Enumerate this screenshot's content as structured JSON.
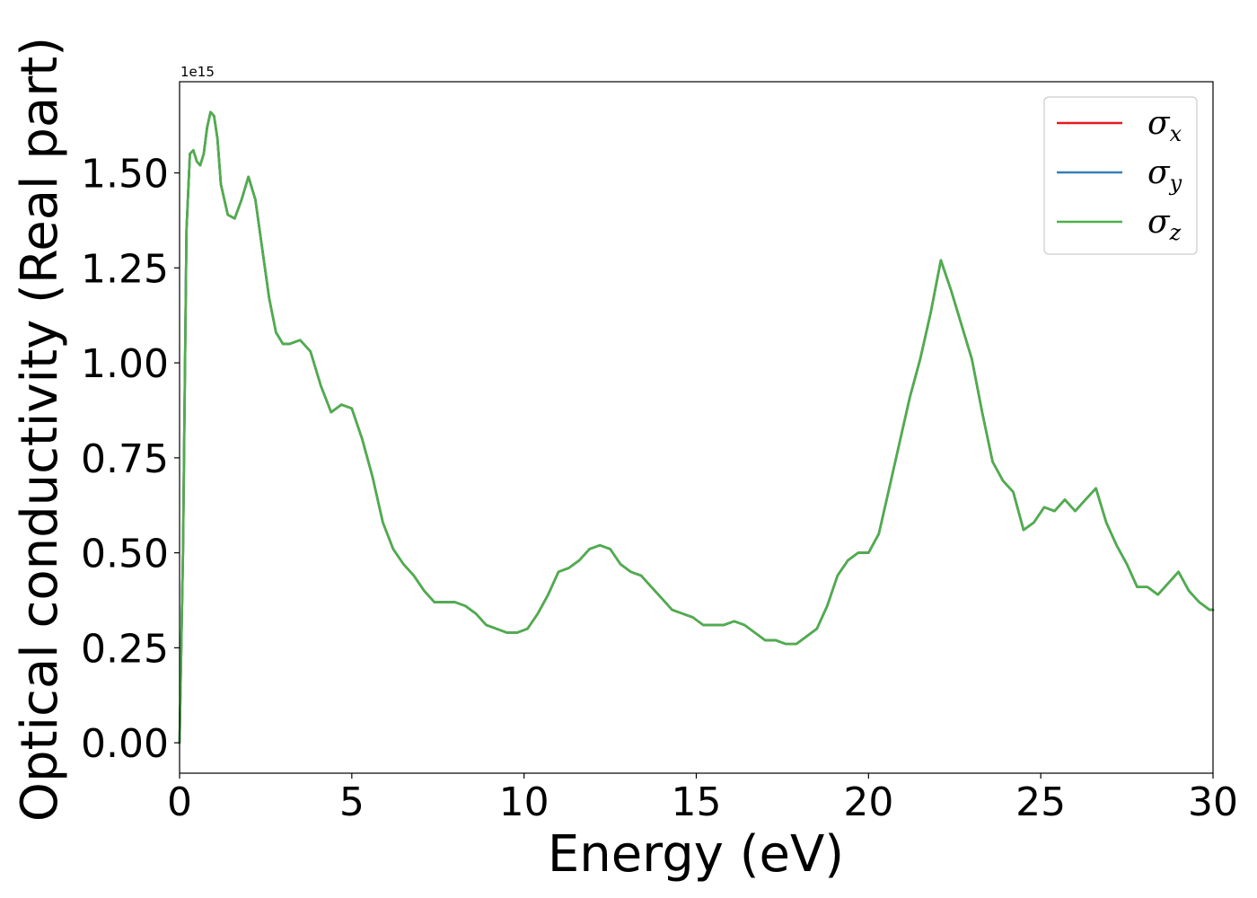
{
  "chart_data": {
    "type": "line",
    "title": "",
    "xlabel": "Energy (eV)",
    "ylabel": "Optical conductivity (Real part)",
    "y_offset_text": "1e15",
    "xlim": [
      0,
      30
    ],
    "ylim": [
      -0.08,
      1.74
    ],
    "y_scale_factor": 1000000000000000.0,
    "xticks": [
      0,
      5,
      10,
      15,
      20,
      25,
      30
    ],
    "xtick_labels": [
      "0",
      "5",
      "10",
      "15",
      "20",
      "25",
      "30"
    ],
    "yticks": [
      0.0,
      0.25,
      0.5,
      0.75,
      1.0,
      1.25,
      1.5
    ],
    "ytick_labels": [
      "0.00",
      "0.25",
      "0.50",
      "0.75",
      "1.00",
      "1.25",
      "1.50"
    ],
    "grid": false,
    "legend_position": "top-right",
    "x": [
      0,
      0.1,
      0.2,
      0.3,
      0.4,
      0.5,
      0.6,
      0.7,
      0.8,
      0.9,
      1.0,
      1.1,
      1.2,
      1.4,
      1.6,
      1.8,
      2.0,
      2.2,
      2.4,
      2.6,
      2.8,
      3.0,
      3.2,
      3.5,
      3.8,
      4.1,
      4.4,
      4.7,
      5.0,
      5.3,
      5.6,
      5.9,
      6.2,
      6.5,
      6.8,
      7.1,
      7.4,
      7.7,
      8.0,
      8.3,
      8.6,
      8.9,
      9.2,
      9.5,
      9.8,
      10.1,
      10.4,
      10.7,
      11.0,
      11.3,
      11.6,
      11.9,
      12.2,
      12.5,
      12.8,
      13.1,
      13.4,
      13.7,
      14.0,
      14.3,
      14.6,
      14.9,
      15.2,
      15.5,
      15.8,
      16.1,
      16.4,
      16.7,
      17.0,
      17.3,
      17.6,
      17.9,
      18.2,
      18.5,
      18.8,
      19.1,
      19.4,
      19.7,
      20.0,
      20.3,
      20.6,
      20.9,
      21.2,
      21.5,
      21.8,
      22.1,
      22.4,
      22.7,
      23.0,
      23.3,
      23.6,
      23.9,
      24.2,
      24.5,
      24.8,
      25.1,
      25.4,
      25.7,
      26.0,
      26.3,
      26.6,
      26.9,
      27.2,
      27.5,
      27.8,
      28.1,
      28.4,
      28.7,
      29.0,
      29.3,
      29.6,
      29.9,
      30.0
    ],
    "series": [
      {
        "name": "σx",
        "color": "#e41a1c",
        "values": [
          0.0,
          0.5,
          1.35,
          1.55,
          1.56,
          1.53,
          1.52,
          1.55,
          1.62,
          1.66,
          1.65,
          1.59,
          1.47,
          1.39,
          1.38,
          1.43,
          1.49,
          1.43,
          1.3,
          1.17,
          1.08,
          1.05,
          1.05,
          1.06,
          1.03,
          0.94,
          0.87,
          0.89,
          0.88,
          0.8,
          0.7,
          0.58,
          0.51,
          0.47,
          0.44,
          0.4,
          0.37,
          0.37,
          0.37,
          0.36,
          0.34,
          0.31,
          0.3,
          0.29,
          0.29,
          0.3,
          0.34,
          0.39,
          0.45,
          0.46,
          0.48,
          0.51,
          0.52,
          0.51,
          0.47,
          0.45,
          0.44,
          0.41,
          0.38,
          0.35,
          0.34,
          0.33,
          0.31,
          0.31,
          0.31,
          0.32,
          0.31,
          0.29,
          0.27,
          0.27,
          0.26,
          0.26,
          0.28,
          0.3,
          0.36,
          0.44,
          0.48,
          0.5,
          0.5,
          0.55,
          0.67,
          0.79,
          0.91,
          1.01,
          1.13,
          1.27,
          1.19,
          1.1,
          1.01,
          0.87,
          0.74,
          0.69,
          0.66,
          0.56,
          0.58,
          0.62,
          0.61,
          0.64,
          0.61,
          0.64,
          0.67,
          0.58,
          0.52,
          0.47,
          0.41,
          0.41,
          0.39,
          0.42,
          0.45,
          0.4,
          0.37,
          0.35,
          0.35
        ]
      },
      {
        "name": "σy",
        "color": "#377eb8",
        "values": [
          0.0,
          0.5,
          1.35,
          1.55,
          1.56,
          1.53,
          1.52,
          1.55,
          1.62,
          1.66,
          1.65,
          1.59,
          1.47,
          1.39,
          1.38,
          1.43,
          1.49,
          1.43,
          1.3,
          1.17,
          1.08,
          1.05,
          1.05,
          1.06,
          1.03,
          0.94,
          0.87,
          0.89,
          0.88,
          0.8,
          0.7,
          0.58,
          0.51,
          0.47,
          0.44,
          0.4,
          0.37,
          0.37,
          0.37,
          0.36,
          0.34,
          0.31,
          0.3,
          0.29,
          0.29,
          0.3,
          0.34,
          0.39,
          0.45,
          0.46,
          0.48,
          0.51,
          0.52,
          0.51,
          0.47,
          0.45,
          0.44,
          0.41,
          0.38,
          0.35,
          0.34,
          0.33,
          0.31,
          0.31,
          0.31,
          0.32,
          0.31,
          0.29,
          0.27,
          0.27,
          0.26,
          0.26,
          0.28,
          0.3,
          0.36,
          0.44,
          0.48,
          0.5,
          0.5,
          0.55,
          0.67,
          0.79,
          0.91,
          1.01,
          1.13,
          1.27,
          1.19,
          1.1,
          1.01,
          0.87,
          0.74,
          0.69,
          0.66,
          0.56,
          0.58,
          0.62,
          0.61,
          0.64,
          0.61,
          0.64,
          0.67,
          0.58,
          0.52,
          0.47,
          0.41,
          0.41,
          0.39,
          0.42,
          0.45,
          0.4,
          0.37,
          0.35,
          0.35
        ]
      },
      {
        "name": "σz",
        "color": "#4daf4a",
        "values": [
          0.0,
          0.5,
          1.35,
          1.55,
          1.56,
          1.53,
          1.52,
          1.55,
          1.62,
          1.66,
          1.65,
          1.59,
          1.47,
          1.39,
          1.38,
          1.43,
          1.49,
          1.43,
          1.3,
          1.17,
          1.08,
          1.05,
          1.05,
          1.06,
          1.03,
          0.94,
          0.87,
          0.89,
          0.88,
          0.8,
          0.7,
          0.58,
          0.51,
          0.47,
          0.44,
          0.4,
          0.37,
          0.37,
          0.37,
          0.36,
          0.34,
          0.31,
          0.3,
          0.29,
          0.29,
          0.3,
          0.34,
          0.39,
          0.45,
          0.46,
          0.48,
          0.51,
          0.52,
          0.51,
          0.47,
          0.45,
          0.44,
          0.41,
          0.38,
          0.35,
          0.34,
          0.33,
          0.31,
          0.31,
          0.31,
          0.32,
          0.31,
          0.29,
          0.27,
          0.27,
          0.26,
          0.26,
          0.28,
          0.3,
          0.36,
          0.44,
          0.48,
          0.5,
          0.5,
          0.55,
          0.67,
          0.79,
          0.91,
          1.01,
          1.13,
          1.27,
          1.19,
          1.1,
          1.01,
          0.87,
          0.74,
          0.69,
          0.66,
          0.56,
          0.58,
          0.62,
          0.61,
          0.64,
          0.61,
          0.64,
          0.67,
          0.58,
          0.52,
          0.47,
          0.41,
          0.41,
          0.39,
          0.42,
          0.45,
          0.4,
          0.37,
          0.35,
          0.35
        ]
      }
    ],
    "legend": [
      {
        "symbol": "σ",
        "sub": "x",
        "color": "#e41a1c"
      },
      {
        "symbol": "σ",
        "sub": "y",
        "color": "#377eb8"
      },
      {
        "symbol": "σ",
        "sub": "z",
        "color": "#4daf4a"
      }
    ]
  }
}
